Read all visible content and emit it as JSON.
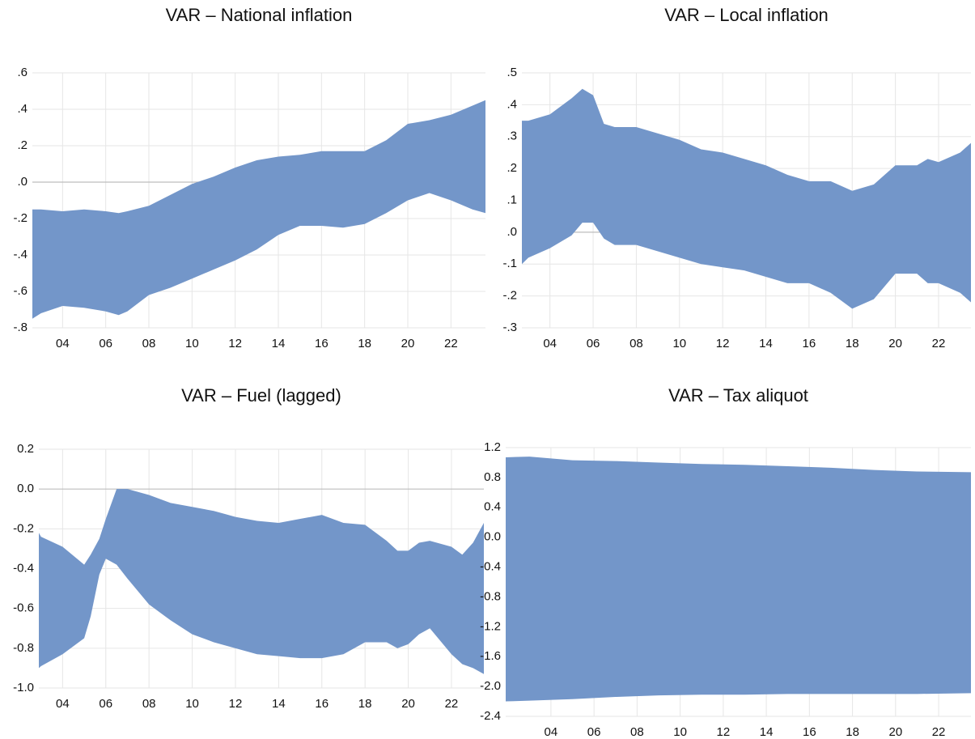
{
  "chart_data": [
    {
      "type": "band",
      "title": "VAR – National inflation",
      "color": "#7396c9",
      "grid": true,
      "x": [
        2.6,
        3,
        4,
        5,
        6,
        6.6,
        7,
        8,
        9,
        10,
        11,
        12,
        13,
        14,
        15,
        16,
        17,
        18,
        19,
        20,
        21,
        22,
        23,
        23.6
      ],
      "high": [
        -0.15,
        -0.15,
        -0.16,
        -0.15,
        -0.16,
        -0.17,
        -0.16,
        -0.13,
        -0.07,
        -0.01,
        0.03,
        0.08,
        0.12,
        0.14,
        0.15,
        0.17,
        0.17,
        0.17,
        0.23,
        0.32,
        0.34,
        0.37,
        0.42,
        0.45
      ],
      "low": [
        -0.75,
        -0.72,
        -0.68,
        -0.69,
        -0.71,
        -0.73,
        -0.71,
        -0.62,
        -0.58,
        -0.53,
        -0.48,
        -0.43,
        -0.37,
        -0.29,
        -0.24,
        -0.24,
        -0.25,
        -0.23,
        -0.17,
        -0.1,
        -0.06,
        -0.1,
        -0.15,
        -0.17
      ],
      "xlim": [
        2.6,
        23.6
      ],
      "xticks": [
        {
          "value": 4,
          "label": "04"
        },
        {
          "value": 6,
          "label": "06"
        },
        {
          "value": 8,
          "label": "08"
        },
        10,
        12,
        14,
        16,
        18,
        20,
        22
      ],
      "ylim": [
        -0.8,
        0.6
      ],
      "yticks": [
        {
          "value": -0.8,
          "label": "-.8"
        },
        {
          "value": -0.6,
          "label": "-.6"
        },
        {
          "value": -0.4,
          "label": "-.4"
        },
        {
          "value": -0.2,
          "label": "-.2"
        },
        {
          "value": 0,
          "label": ".0"
        },
        {
          "value": 0.2,
          "label": ".2"
        },
        {
          "value": 0.4,
          "label": ".4"
        },
        {
          "value": 0.6,
          "label": ".6"
        }
      ]
    },
    {
      "type": "band",
      "title": "VAR – Local inflation",
      "color": "#7396c9",
      "grid": true,
      "x": [
        2.7,
        3,
        4,
        5,
        5.5,
        6,
        6.5,
        7,
        8,
        9,
        10,
        11,
        12,
        13,
        14,
        15,
        16,
        17,
        18,
        19,
        20,
        21,
        21.5,
        22,
        23,
        23.5
      ],
      "high": [
        0.35,
        0.35,
        0.37,
        0.42,
        0.45,
        0.43,
        0.34,
        0.33,
        0.33,
        0.31,
        0.29,
        0.26,
        0.25,
        0.23,
        0.21,
        0.18,
        0.16,
        0.16,
        0.13,
        0.15,
        0.21,
        0.21,
        0.23,
        0.22,
        0.25,
        0.28
      ],
      "low": [
        -0.1,
        -0.08,
        -0.05,
        -0.01,
        0.03,
        0.03,
        -0.02,
        -0.04,
        -0.04,
        -0.06,
        -0.08,
        -0.1,
        -0.11,
        -0.12,
        -0.14,
        -0.16,
        -0.16,
        -0.19,
        -0.24,
        -0.21,
        -0.13,
        -0.13,
        -0.16,
        -0.16,
        -0.19,
        -0.22
      ],
      "xlim": [
        2.7,
        23.5
      ],
      "xticks": [
        {
          "value": 4,
          "label": "04"
        },
        {
          "value": 6,
          "label": "06"
        },
        {
          "value": 8,
          "label": "08"
        },
        10,
        12,
        14,
        16,
        18,
        20,
        22
      ],
      "ylim": [
        -0.3,
        0.5
      ],
      "yticks": [
        {
          "value": -0.3,
          "label": "-.3"
        },
        {
          "value": -0.2,
          "label": "-.2"
        },
        {
          "value": -0.1,
          "label": "-.1"
        },
        {
          "value": 0,
          "label": ".0"
        },
        {
          "value": 0.1,
          "label": ".1"
        },
        {
          "value": 0.2,
          "label": ".2"
        },
        {
          "value": 0.3,
          "label": ".3"
        },
        {
          "value": 0.4,
          "label": ".4"
        },
        {
          "value": 0.5,
          "label": ".5"
        }
      ]
    },
    {
      "type": "band",
      "title": "VAR – Fuel (lagged)",
      "color": "#7396c9",
      "grid": true,
      "x": [
        2.9,
        3,
        4,
        5,
        5.3,
        5.7,
        6,
        6.5,
        7,
        8,
        9,
        10,
        11,
        12,
        13,
        14,
        15,
        16,
        17,
        18,
        19,
        19.5,
        20,
        20.5,
        21,
        22,
        22.5,
        23,
        23.5
      ],
      "high": [
        -0.22,
        -0.24,
        -0.29,
        -0.38,
        -0.33,
        -0.25,
        -0.15,
        0.0,
        0.0,
        -0.03,
        -0.07,
        -0.09,
        -0.11,
        -0.14,
        -0.16,
        -0.17,
        -0.15,
        -0.13,
        -0.17,
        -0.18,
        -0.26,
        -0.31,
        -0.31,
        -0.27,
        -0.26,
        -0.29,
        -0.33,
        -0.27,
        -0.17
      ],
      "low": [
        -0.9,
        -0.89,
        -0.83,
        -0.75,
        -0.64,
        -0.43,
        -0.35,
        -0.38,
        -0.45,
        -0.58,
        -0.66,
        -0.73,
        -0.77,
        -0.8,
        -0.83,
        -0.84,
        -0.85,
        -0.85,
        -0.83,
        -0.77,
        -0.77,
        -0.8,
        -0.78,
        -0.73,
        -0.7,
        -0.83,
        -0.88,
        -0.9,
        -0.93
      ],
      "xlim": [
        2.9,
        23.5
      ],
      "xticks": [
        {
          "value": 4,
          "label": "04"
        },
        {
          "value": 6,
          "label": "06"
        },
        {
          "value": 8,
          "label": "08"
        },
        10,
        12,
        14,
        16,
        18,
        20,
        22
      ],
      "ylim": [
        -1.0,
        0.2
      ],
      "yticks": [
        {
          "value": -1.0,
          "label": "-1.0"
        },
        {
          "value": -0.8,
          "label": "-0.8"
        },
        {
          "value": -0.6,
          "label": "-0.6"
        },
        {
          "value": -0.4,
          "label": "-0.4"
        },
        {
          "value": -0.2,
          "label": "-0.2"
        },
        {
          "value": 0,
          "label": "0.0"
        },
        0.2
      ]
    },
    {
      "type": "band",
      "title": "VAR – Tax aliquot",
      "color": "#7396c9",
      "grid": true,
      "x": [
        1.9,
        3,
        5,
        7,
        9,
        11,
        13,
        15,
        17,
        19,
        21,
        23.5
      ],
      "high": [
        1.07,
        1.08,
        1.03,
        1.02,
        1.0,
        0.98,
        0.97,
        0.95,
        0.93,
        0.9,
        0.88,
        0.87
      ],
      "low": [
        -2.2,
        -2.19,
        -2.17,
        -2.14,
        -2.12,
        -2.11,
        -2.11,
        -2.1,
        -2.1,
        -2.1,
        -2.1,
        -2.09
      ],
      "xlim": [
        1.9,
        23.5
      ],
      "xticks": [
        {
          "value": 4,
          "label": "04"
        },
        {
          "value": 6,
          "label": "06"
        },
        {
          "value": 8,
          "label": "08"
        },
        10,
        12,
        14,
        16,
        18,
        20,
        22
      ],
      "ylim": [
        -2.4,
        1.2
      ],
      "yticks": [
        {
          "value": -2.4,
          "label": "-2.4"
        },
        {
          "value": -2.0,
          "label": "-2.0"
        },
        {
          "value": -1.6,
          "label": "-1.6"
        },
        {
          "value": -1.2,
          "label": "-1.2"
        },
        {
          "value": -0.8,
          "label": "-0.8"
        },
        {
          "value": -0.4,
          "label": "-0.4"
        },
        {
          "value": 0,
          "label": "0.0"
        },
        0.4,
        0.8,
        1.2
      ]
    }
  ]
}
